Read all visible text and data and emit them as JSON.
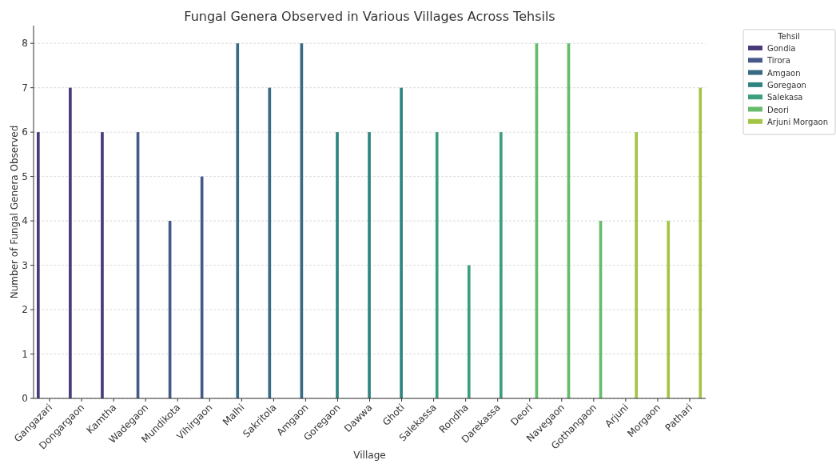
{
  "chart_data": {
    "type": "bar",
    "title": "Fungal Genera Observed in Various Villages Across Tehsils",
    "xlabel": "Village",
    "ylabel": "Number of Fungal Genera Observed",
    "legend_title": "Tehsil",
    "legend": "top right",
    "grid": "y",
    "ylim": [
      0,
      8.4
    ],
    "yticks": [
      0,
      1,
      2,
      3,
      4,
      5,
      6,
      7,
      8
    ],
    "categories": [
      "Gangazari",
      "Dongargaon",
      "Kamtha",
      "Wadegaon",
      "Mundikota",
      "Vihirgaon",
      "Malhi",
      "Sakritola",
      "Amgaon",
      "Goregaon",
      "Dawwa",
      "Ghoti",
      "Salekassa",
      "Rondha",
      "Darekassa",
      "Deori",
      "Navegaon",
      "Gothangaon",
      "Arjuni",
      "Morgaon",
      "Pathari"
    ],
    "series": [
      {
        "name": "Gondia",
        "color": "#4b3a7a",
        "values": [
          6,
          7,
          6,
          null,
          null,
          null,
          null,
          null,
          null,
          null,
          null,
          null,
          null,
          null,
          null,
          null,
          null,
          null,
          null,
          null,
          null
        ]
      },
      {
        "name": "Tirora",
        "color": "#465a8a",
        "values": [
          null,
          null,
          null,
          6,
          4,
          5,
          null,
          null,
          null,
          null,
          null,
          null,
          null,
          null,
          null,
          null,
          null,
          null,
          null,
          null,
          null
        ]
      },
      {
        "name": "Amgaon",
        "color": "#386a84",
        "values": [
          null,
          null,
          null,
          null,
          null,
          null,
          8,
          7,
          8,
          null,
          null,
          null,
          null,
          null,
          null,
          null,
          null,
          null,
          null,
          null,
          null
        ]
      },
      {
        "name": "Goregaon",
        "color": "#2e8580",
        "values": [
          null,
          null,
          null,
          null,
          null,
          null,
          null,
          null,
          null,
          6,
          6,
          7,
          null,
          null,
          null,
          null,
          null,
          null,
          null,
          null,
          null
        ]
      },
      {
        "name": "Salekasa",
        "color": "#3a9e7f",
        "values": [
          null,
          null,
          null,
          null,
          null,
          null,
          null,
          null,
          null,
          null,
          null,
          null,
          6,
          3,
          6,
          null,
          null,
          null,
          null,
          null,
          null
        ]
      },
      {
        "name": "Deori",
        "color": "#67bc6c",
        "values": [
          null,
          null,
          null,
          null,
          null,
          null,
          null,
          null,
          null,
          null,
          null,
          null,
          null,
          null,
          null,
          8,
          8,
          4,
          null,
          null,
          null
        ]
      },
      {
        "name": "Arjuni Morgaon",
        "color": "#a2c546",
        "values": [
          null,
          null,
          null,
          null,
          null,
          null,
          null,
          null,
          null,
          null,
          null,
          null,
          null,
          null,
          null,
          null,
          null,
          null,
          6,
          4,
          7
        ]
      }
    ]
  }
}
